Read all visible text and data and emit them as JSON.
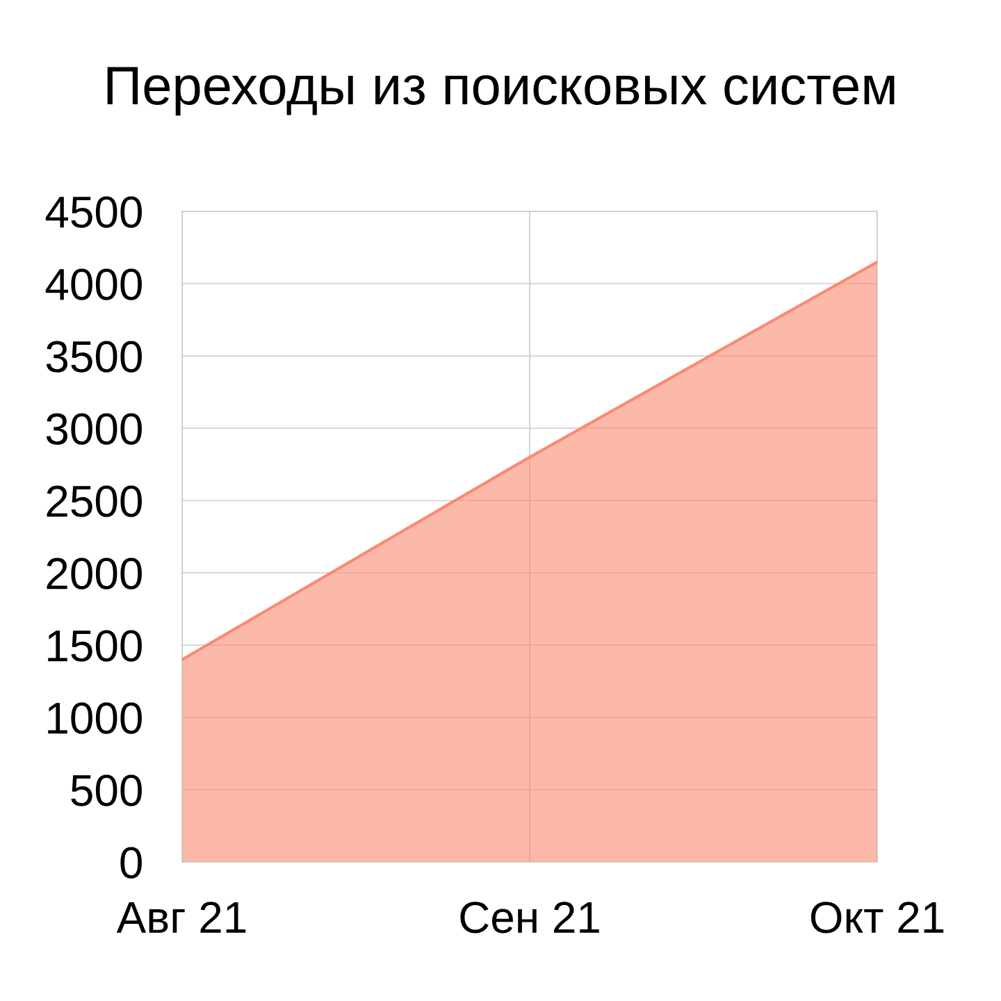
{
  "chart_data": {
    "type": "area",
    "title": "Переходы из поисковых систем",
    "categories": [
      "Авг 21",
      "Сен 21",
      "Окт 21"
    ],
    "series": [
      {
        "color": "#fa8a70",
        "values": [
          1400,
          2800,
          4150
        ]
      }
    ],
    "ylim": [
      0,
      4500
    ],
    "yticks": [
      0,
      500,
      1000,
      1500,
      2000,
      2500,
      3000,
      3500,
      4000,
      4500
    ],
    "grid": true,
    "legend": false
  }
}
